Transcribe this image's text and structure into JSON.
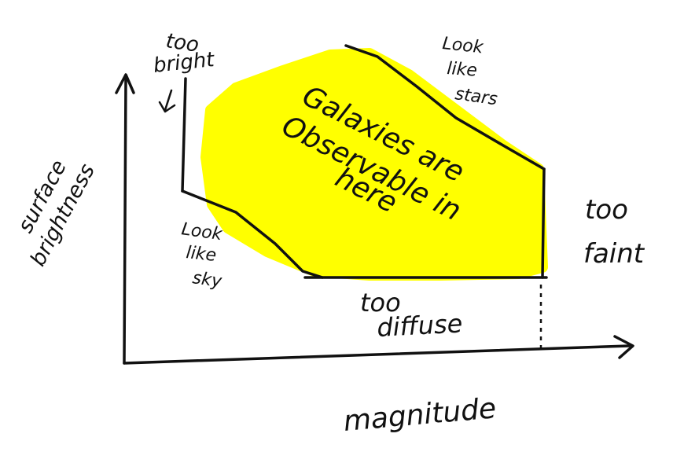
{
  "diagram": {
    "x_axis_label": "magnitude",
    "y_axis_label_line1": "surface",
    "y_axis_label_line2": "brightness",
    "label_too_bright_line1": "too",
    "label_too_bright_line2": "bright",
    "label_look_like_stars": [
      "Look",
      "like",
      "stars"
    ],
    "label_look_like_sky": [
      "Look",
      "like",
      "sky"
    ],
    "label_too_faint_line1": "too",
    "label_too_faint_line2": "faint",
    "label_too_diffuse_line1": "too",
    "label_too_diffuse_line2": "diffuse",
    "region_text": [
      "Galaxies are",
      "Observable in",
      "here"
    ],
    "colors": {
      "ink": "#111111",
      "highlight": "#ffff00"
    }
  }
}
